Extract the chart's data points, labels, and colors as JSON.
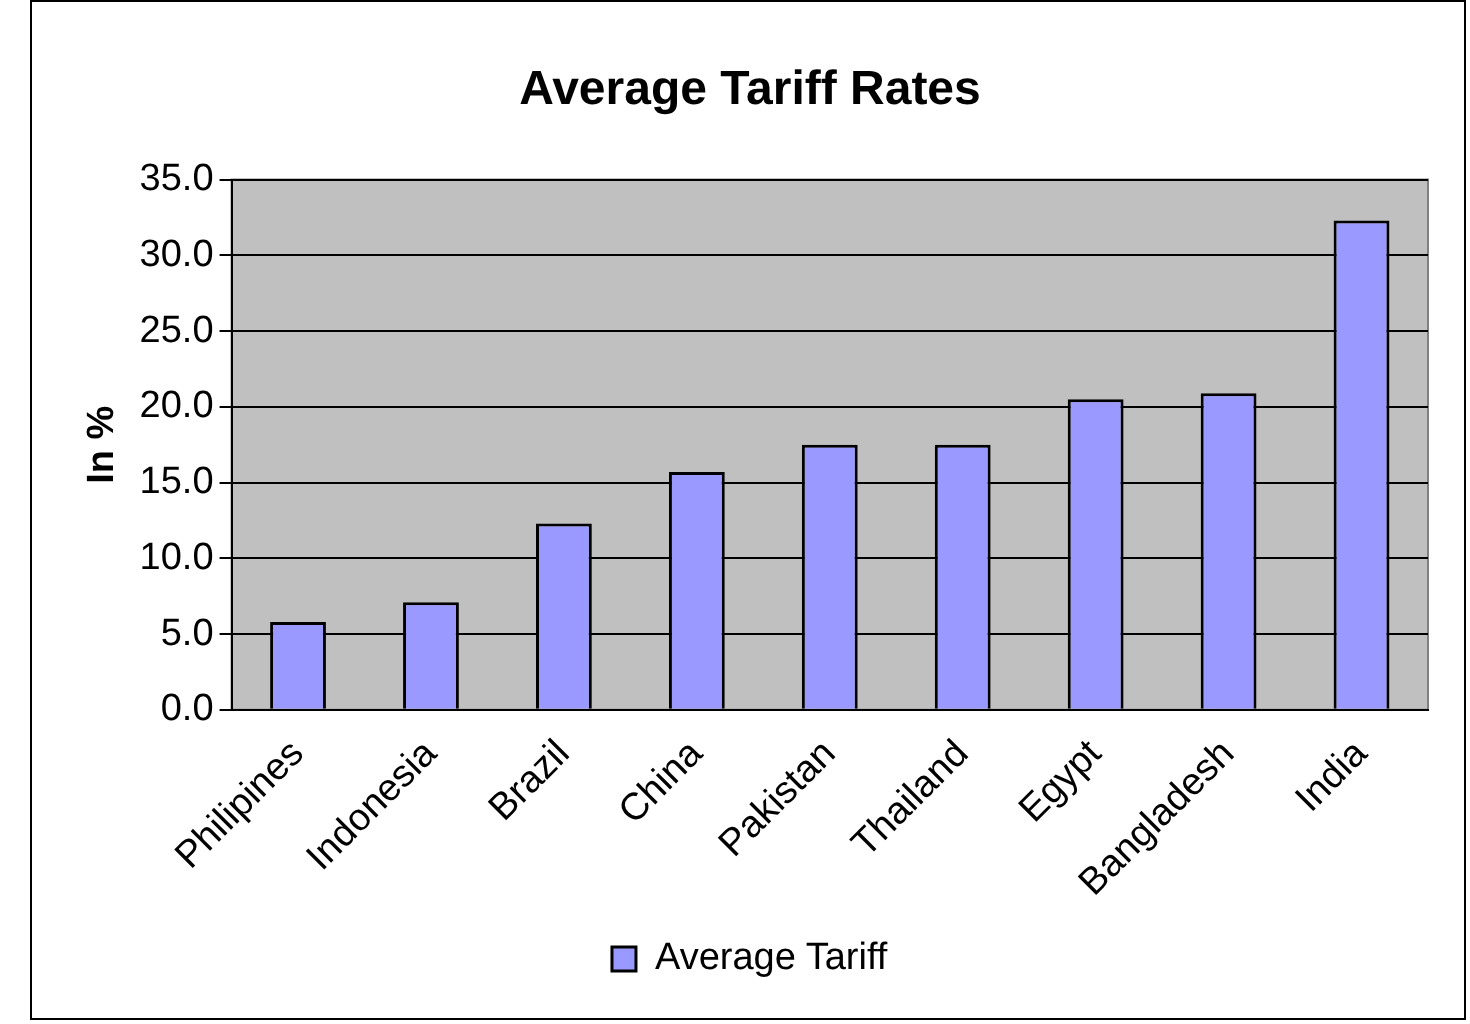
{
  "chart_data": {
    "type": "bar",
    "title": "Average Tariff Rates",
    "ylabel": "In %",
    "categories": [
      "Philipines",
      "Indonesia",
      "Brazil",
      "China",
      "Pakistan",
      "Thailand",
      "Egypt",
      "Bangladesh",
      "India"
    ],
    "series": [
      {
        "name": "Average Tariff",
        "color": "#9999ff",
        "values": [
          5.8,
          7.1,
          12.3,
          15.7,
          17.5,
          17.5,
          20.5,
          20.9,
          32.3
        ]
      }
    ],
    "ylim": [
      0,
      35
    ],
    "yticks": [
      {
        "value": 0,
        "label": "0.0"
      },
      {
        "value": 5,
        "label": "5.0"
      },
      {
        "value": 10,
        "label": "10.0"
      },
      {
        "value": 15,
        "label": "15.0"
      },
      {
        "value": 20,
        "label": "20.0"
      },
      {
        "value": 25,
        "label": "25.0"
      },
      {
        "value": 30,
        "label": "30.0"
      },
      {
        "value": 35,
        "label": "35.0"
      }
    ],
    "grid": "y",
    "legend": "bottom"
  }
}
